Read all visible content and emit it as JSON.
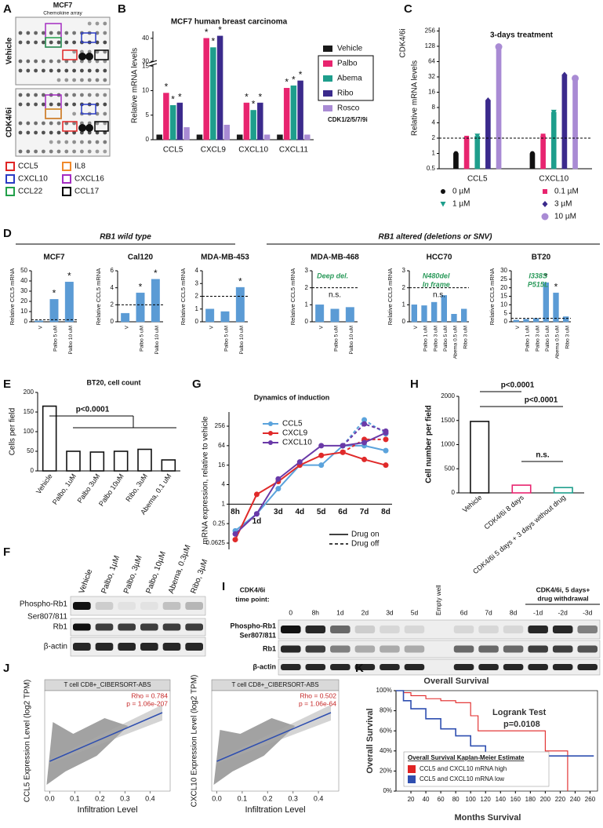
{
  "A": {
    "label": "A",
    "title": "MCF7",
    "subtitle": "Chemokine array",
    "rows": [
      "Vehicle",
      "CDK4/6i"
    ],
    "legend": [
      {
        "name": "CCL5",
        "color": "#e02424"
      },
      {
        "name": "IL8",
        "color": "#f0892a"
      },
      {
        "name": "CXCL10",
        "color": "#2a3bc4"
      },
      {
        "name": "CXCL16",
        "color": "#a42cc2"
      },
      {
        "name": "CCL22",
        "color": "#22a04a"
      },
      {
        "name": "CCL17",
        "color": "#000000"
      }
    ]
  },
  "B": {
    "label": "B",
    "type": "bar",
    "title": "MCF7 human breast carcinoma",
    "ylabel": "Relative mRNA levels",
    "categories": [
      "CCL5",
      "CXCL9",
      "CXCL10",
      "CXCL11"
    ],
    "ylim": [
      0,
      43
    ],
    "axis_break": [
      15,
      30
    ],
    "yticks": [
      0,
      5,
      10,
      15,
      30,
      40
    ],
    "series": [
      {
        "name": "Vehicle",
        "color": "#1a1a1a",
        "values": [
          1,
          1,
          1,
          1
        ]
      },
      {
        "name": "Palbo",
        "color": "#e8246f",
        "values": [
          9.5,
          40,
          7.5,
          10.5
        ],
        "annotations": [
          "*",
          "*",
          "*",
          "*"
        ]
      },
      {
        "name": "Abema",
        "color": "#1e9e8c",
        "values": [
          7,
          36,
          6,
          11
        ],
        "annotations": [
          "*",
          "*",
          "*",
          "*"
        ]
      },
      {
        "name": "Ribo",
        "color": "#3b2a8c",
        "values": [
          7.5,
          41,
          7.5,
          12
        ],
        "annotations": [
          "*",
          "*",
          "*",
          "*"
        ]
      },
      {
        "name": "Rosco",
        "color": "#a98bd4",
        "values": [
          2.5,
          3,
          1,
          1
        ]
      }
    ],
    "legend_note": "CDK1/2/5/7/9i"
  },
  "C": {
    "label": "C",
    "type": "bar",
    "log": true,
    "title": "3-days treatment",
    "treatment": "CDK4/6i",
    "ylabel": "Relative mRNA levels",
    "categories": [
      "CCL5",
      "CXCL10"
    ],
    "ylim": [
      0.5,
      300
    ],
    "yticks": [
      0.5,
      1,
      2,
      4,
      8,
      16,
      32,
      64,
      128,
      256
    ],
    "ref_line": 2,
    "series": [
      {
        "name": "0 µM",
        "color": "#111111",
        "marker": "circle",
        "values": [
          1,
          1
        ]
      },
      {
        "name": "0.1 µM",
        "color": "#e8246f",
        "marker": "square",
        "values": [
          2,
          2.2
        ]
      },
      {
        "name": "1 µM",
        "color": "#1e9e8c",
        "marker": "triangle",
        "values": [
          2.2,
          6.5
        ]
      },
      {
        "name": "3 µM",
        "color": "#3b2a8c",
        "marker": "diamond",
        "values": [
          11,
          35
        ]
      },
      {
        "name": "10 µM",
        "color": "#a98bd4",
        "marker": "circle",
        "values": [
          125,
          30
        ]
      }
    ]
  },
  "D": {
    "label": "D",
    "section_titles": [
      "RB1 wild type",
      "RB1 altered (deletions or SNV)"
    ],
    "ylabel": "Relative CCL5 mRNA",
    "charts": [
      {
        "type": "bar",
        "title": "MCF7",
        "color": "#5b9bd5",
        "categories": [
          "V",
          "Palbo 5 uM",
          "Palbo 10 uM"
        ],
        "values": [
          1,
          22,
          39
        ],
        "annotations": [
          null,
          "*",
          "*"
        ],
        "ylim": [
          0,
          50
        ],
        "yticks": [
          0,
          10,
          20,
          30,
          40,
          50
        ],
        "ref_line": 2
      },
      {
        "type": "bar",
        "title": "Cal120",
        "color": "#5b9bd5",
        "categories": [
          "V",
          "Palbo 5 uM",
          "Palbo 10 uM"
        ],
        "values": [
          1,
          3.4,
          5
        ],
        "annotations": [
          null,
          "*",
          "*"
        ],
        "ylim": [
          0,
          6
        ],
        "yticks": [
          0,
          2,
          4,
          6
        ],
        "ref_line": 2
      },
      {
        "type": "bar",
        "title": "MDA-MB-453",
        "color": "#5b9bd5",
        "categories": [
          "V",
          "Palbo 5 uM",
          "Palbo 10 uM"
        ],
        "values": [
          1,
          0.8,
          2.7
        ],
        "annotations": [
          null,
          null,
          "*"
        ],
        "ylim": [
          0,
          4
        ],
        "yticks": [
          0,
          1,
          2,
          3,
          4
        ],
        "ref_line": 2
      },
      {
        "type": "bar",
        "title": "MDA-MB-468",
        "color": "#5b9bd5",
        "categories": [
          "V",
          "Palbo 5 uM",
          "Palbo 10 uM"
        ],
        "values": [
          1,
          0.75,
          0.85
        ],
        "notes": [
          "Deep del."
        ],
        "ns": "n.s.",
        "ylim": [
          0,
          3
        ],
        "yticks": [
          0,
          1,
          2,
          3
        ],
        "ref_line": 2
      },
      {
        "type": "bar",
        "title": "HCC70",
        "color": "#5b9bd5",
        "categories": [
          "V",
          "Palbo 1 uM",
          "Palbo 3 uM",
          "Palbo 5 uM",
          "Abema 0.5 uM",
          "Ribo 3 uM"
        ],
        "values": [
          1,
          0.95,
          1.15,
          1.55,
          0.45,
          0.75
        ],
        "notes": [
          "N480del",
          "In frame"
        ],
        "ns": "n.s.",
        "ylim": [
          0,
          3
        ],
        "yticks": [
          0,
          1,
          2,
          3
        ],
        "ref_line": 2
      },
      {
        "type": "bar",
        "title": "BT20",
        "color": "#5b9bd5",
        "categories": [
          "V",
          "Palbo 1 uM",
          "Palbo 3 uM",
          "Palbo 5 uM",
          "Abema 0.5 uM",
          "Ribo 3 uM"
        ],
        "values": [
          1,
          1.5,
          2,
          23,
          17,
          3
        ],
        "annotations": [
          null,
          null,
          null,
          "*",
          "*",
          null
        ],
        "notes": [
          "I338S",
          "P515L"
        ],
        "ylim": [
          0,
          30
        ],
        "yticks": [
          0,
          5,
          10,
          15,
          20,
          25,
          30
        ],
        "ref_line": 2
      }
    ]
  },
  "E": {
    "label": "E",
    "type": "bar",
    "title": "BT20, cell count",
    "ylabel": "Cells per field",
    "color": "#111111",
    "categories": [
      "Vehicle",
      "Palbo, 1uM",
      "Palbo 3uM",
      "Palbo 10uM",
      "Ribo, 3uM",
      "Abema, 0.1 uM"
    ],
    "values": [
      165,
      50,
      48,
      50,
      55,
      28
    ],
    "ylim": [
      0,
      200
    ],
    "yticks": [
      0,
      50,
      100,
      150,
      200
    ],
    "p_value": "p<0.0001"
  },
  "F": {
    "label": "F",
    "lanes": [
      "Vehicle",
      "Palbo, 1µM",
      "Palbo, 3µM",
      "Palbo, 10µM",
      "Abema, 0.3µM",
      "Ribo, 3µM"
    ],
    "rows": [
      "Phospho-Rb1",
      "Ser807/811",
      "Rb1",
      "β-actin"
    ]
  },
  "G": {
    "label": "G",
    "type": "line",
    "log": true,
    "title": "Dynamics of induction",
    "ylabel": "mRNA expression, relative to vehicle",
    "categories": [
      "8h",
      "1d",
      "3d",
      "4d",
      "5d",
      "6d",
      "7d",
      "8d"
    ],
    "ylim": [
      0.04,
      700
    ],
    "yticks": [
      0.0625,
      0.25,
      1,
      4,
      16,
      64,
      256
    ],
    "series": [
      {
        "name": "CCL5",
        "color": "#5ba3dc",
        "values": [
          0.15,
          0.5,
          3,
          16,
          16,
          64,
          64,
          45
        ],
        "values_off": [
          null,
          null,
          null,
          null,
          null,
          64,
          400,
          150
        ]
      },
      {
        "name": "CXCL9",
        "color": "#e02a2a",
        "values": [
          0.08,
          2,
          5,
          16,
          32,
          40,
          24,
          16
        ],
        "values_off": [
          null,
          null,
          null,
          null,
          null,
          40,
          100,
          100
        ]
      },
      {
        "name": "CXCL10",
        "color": "#6a3aa8",
        "values": [
          0.12,
          0.5,
          6,
          20,
          64,
          64,
          80,
          160
        ],
        "values_off": [
          null,
          null,
          null,
          null,
          null,
          64,
          300,
          180
        ]
      }
    ],
    "line_styles": [
      "Drug on",
      "Drug off"
    ]
  },
  "H": {
    "label": "H",
    "type": "bar",
    "ylabel": "Cell number per field",
    "categories": [
      "Vehicle",
      "CDK4/6i 8 days",
      "CDK4/6i 5 days + 3 days without drug"
    ],
    "values": [
      1480,
      160,
      110
    ],
    "colors": [
      "#111111",
      "#e8246f",
      "#1e9e8c"
    ],
    "ylim": [
      0,
      2000
    ],
    "yticks": [
      0,
      500,
      1000,
      1500,
      2000
    ],
    "comparisons": [
      "p<0.0001",
      "p<0.0001",
      "n.s."
    ]
  },
  "I": {
    "label": "I",
    "time_label": [
      "CDK4/6i",
      "time point:"
    ],
    "withdrawal_label": [
      "CDK4/6i, 5 days+",
      "drug withdrawal"
    ],
    "lanes": [
      "0",
      "8h",
      "1d",
      "2d",
      "3d",
      "5d",
      "Empty well",
      "6d",
      "7d",
      "8d",
      "-1d",
      "-2d",
      "-3d"
    ],
    "rows": [
      "Phospho-Rb1",
      "Ser807/811",
      "Rb1",
      "β-actin"
    ]
  },
  "J": {
    "label": "J",
    "charts": [
      {
        "type": "scatter",
        "strip": "T cell CD8+_CIBERSORT-ABS",
        "rho": "Rho = 0.784",
        "p": "p = 1.06e-207",
        "ylabel": "CCL5 Expression Level (log2 TPM)",
        "xlabel": "Infiltration Level",
        "xlim": [
          -0.02,
          0.48
        ],
        "xticks": [
          {
            "value": 0,
            "label": "0.0"
          },
          0.1,
          0.2,
          0.3,
          0.4
        ]
      },
      {
        "type": "scatter",
        "strip": "T cell CD8+_CIBERSORT-ABS",
        "rho": "Rho = 0.502",
        "p": "p = 1.06e-64",
        "ylabel": "CXCL10 Expression Level (log2 TPM)",
        "xlabel": "Infiltration Level",
        "xlim": [
          -0.02,
          0.48
        ],
        "xticks": [
          {
            "value": 0,
            "label": "0.0"
          },
          0.1,
          0.2,
          0.3,
          0.4
        ]
      }
    ]
  },
  "K": {
    "label": "K",
    "type": "step",
    "title": "Overall Survival",
    "test": "Logrank Test",
    "p": "p=0.0108",
    "ylabel": "Overall Survival",
    "xlabel": "Months Survival",
    "xlim": [
      0,
      270
    ],
    "xticks": [
      20,
      40,
      60,
      80,
      100,
      120,
      140,
      160,
      180,
      200,
      220,
      240,
      260
    ],
    "ylim": [
      0,
      100
    ],
    "yticks": [
      {
        "value": 0,
        "label": "0%"
      },
      {
        "value": 20,
        "label": "20%"
      },
      {
        "value": 40,
        "label": "40%"
      },
      {
        "value": 60,
        "label": "60%"
      },
      {
        "value": 80,
        "label": "80%"
      },
      {
        "value": 100,
        "label": "100%"
      }
    ],
    "legend_title": "Overall Survival Kaplan-Meier Estimate",
    "series": [
      {
        "name": "CCL5 and CXCL10 mRNA high",
        "color": "#e02424",
        "x": [
          0,
          10,
          20,
          40,
          60,
          80,
          100,
          110,
          130,
          200,
          230
        ],
        "values": [
          100,
          98,
          95,
          92,
          90,
          88,
          75,
          60,
          60,
          40,
          0
        ]
      },
      {
        "name": "CCL5 and CXCL10 mRNA low",
        "color": "#2f4fb0",
        "x": [
          0,
          10,
          20,
          40,
          60,
          80,
          100,
          120,
          140,
          160,
          200,
          265
        ],
        "values": [
          100,
          90,
          82,
          72,
          62,
          55,
          45,
          38,
          35,
          35,
          35,
          35
        ]
      }
    ]
  }
}
